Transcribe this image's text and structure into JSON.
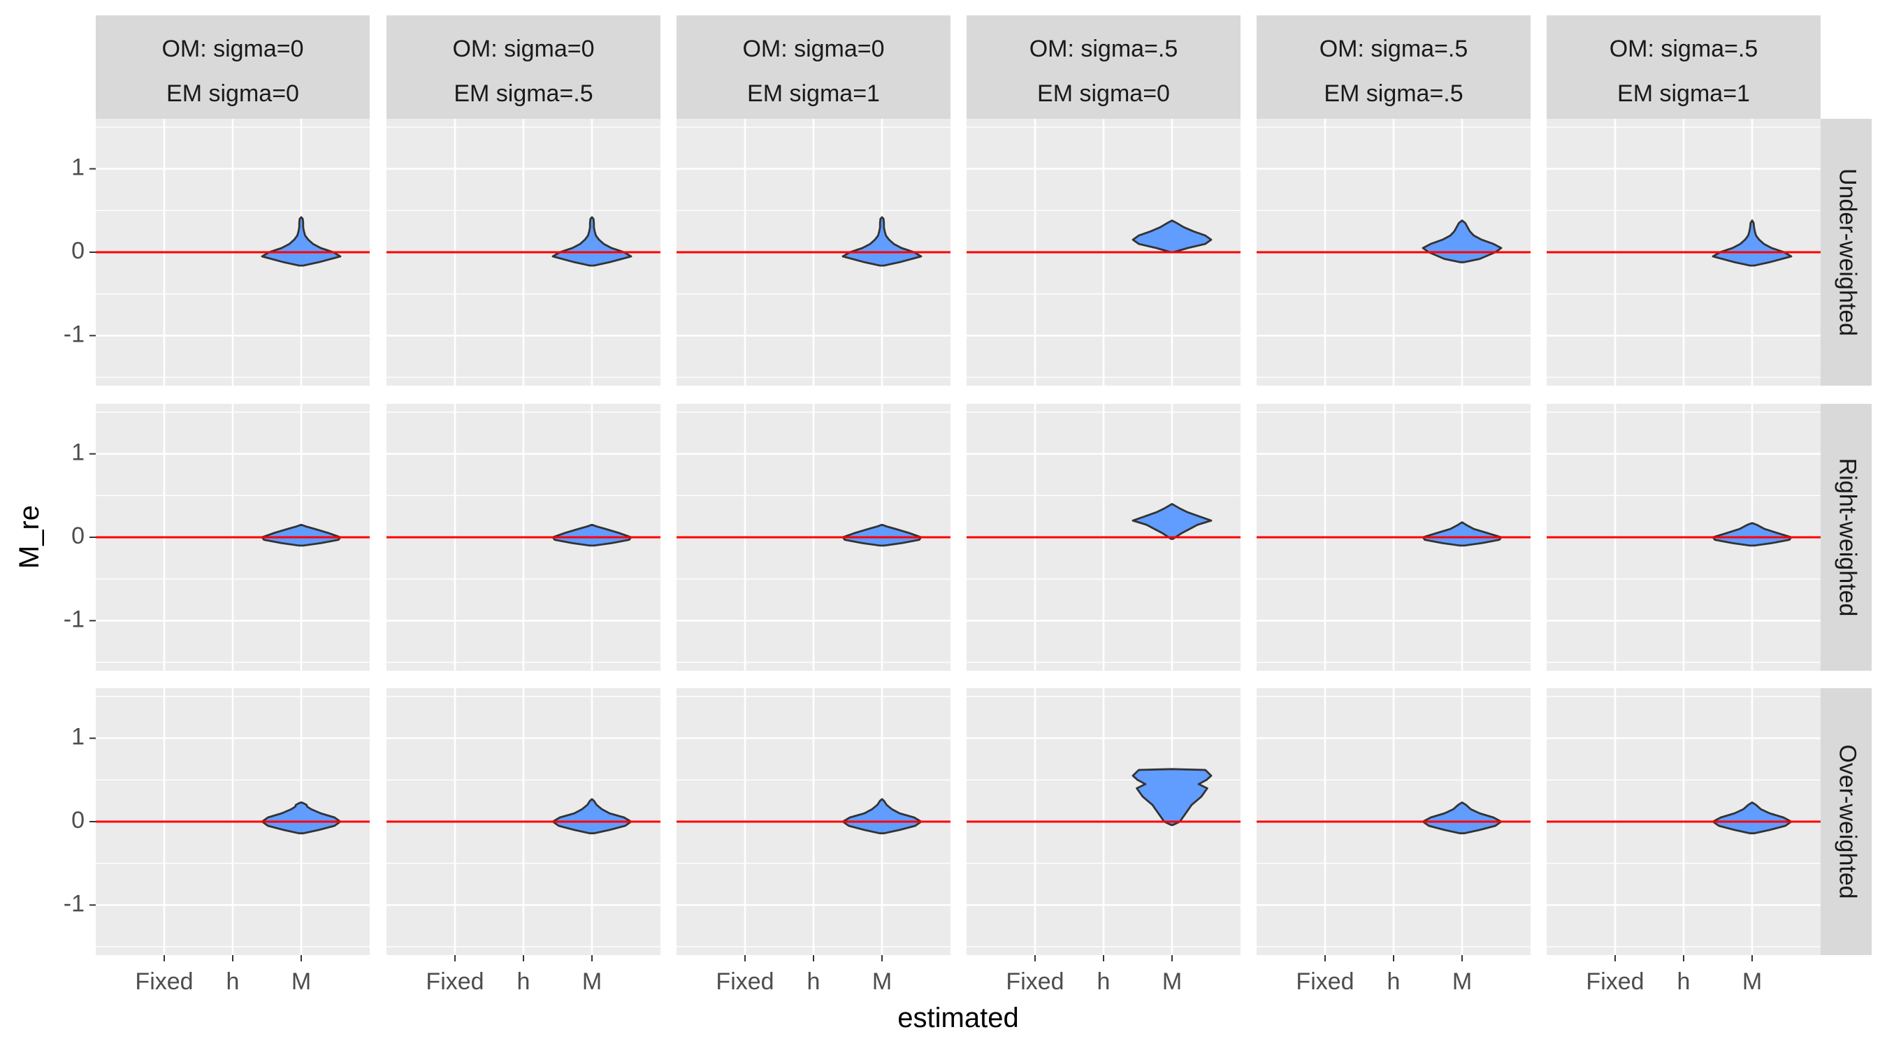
{
  "chart_data": {
    "type": "violin",
    "xlabel": "estimated",
    "ylabel": "M_re",
    "x_categories": [
      "Fixed",
      "h",
      "M"
    ],
    "ylim": [
      -1.6,
      1.6
    ],
    "y_ticks": [
      -1,
      0,
      1
    ],
    "y_tick_labels": [
      "-1",
      "0",
      "1"
    ],
    "reference_line_y": 0,
    "reference_line_color": "#ff0000",
    "violin_fill": "#619cff",
    "panel_background": "#ebebeb",
    "strip_background": "#d9d9d9",
    "columns": [
      {
        "om": "OM: sigma=0",
        "em": "EM sigma=0"
      },
      {
        "om": "OM: sigma=0",
        "em": "EM sigma=.5"
      },
      {
        "om": "OM: sigma=0",
        "em": "EM sigma=1"
      },
      {
        "om": "OM: sigma=.5",
        "em": "EM sigma=0"
      },
      {
        "om": "OM: sigma=.5",
        "em": "EM sigma=.5"
      },
      {
        "om": "OM: sigma=.5",
        "em": "EM sigma=1"
      }
    ],
    "rows": [
      "Under-weighted",
      "Right-weighted",
      "Over-weighted"
    ],
    "violin_shapes": {
      "A": [
        [
          -0.16,
          0.05
        ],
        [
          -0.12,
          0.45
        ],
        [
          -0.05,
          1.0
        ],
        [
          0.0,
          0.82
        ],
        [
          0.05,
          0.5
        ],
        [
          0.1,
          0.3
        ],
        [
          0.15,
          0.18
        ],
        [
          0.2,
          0.1
        ],
        [
          0.25,
          0.07
        ],
        [
          0.3,
          0.05
        ],
        [
          0.35,
          0.05
        ],
        [
          0.4,
          0.04
        ],
        [
          0.42,
          0.0
        ]
      ],
      "B": [
        [
          0.0,
          0.03
        ],
        [
          0.05,
          0.4
        ],
        [
          0.1,
          0.85
        ],
        [
          0.15,
          1.0
        ],
        [
          0.2,
          0.85
        ],
        [
          0.25,
          0.55
        ],
        [
          0.3,
          0.3
        ],
        [
          0.35,
          0.12
        ],
        [
          0.38,
          0.0
        ]
      ],
      "C": [
        [
          -0.12,
          0.05
        ],
        [
          -0.08,
          0.45
        ],
        [
          0.0,
          0.85
        ],
        [
          0.05,
          1.0
        ],
        [
          0.1,
          0.8
        ],
        [
          0.15,
          0.5
        ],
        [
          0.2,
          0.3
        ],
        [
          0.25,
          0.2
        ],
        [
          0.3,
          0.14
        ],
        [
          0.35,
          0.08
        ],
        [
          0.38,
          0.0
        ]
      ],
      "D": [
        [
          -0.16,
          0.05
        ],
        [
          -0.12,
          0.45
        ],
        [
          -0.05,
          1.0
        ],
        [
          0.0,
          0.82
        ],
        [
          0.05,
          0.5
        ],
        [
          0.1,
          0.3
        ],
        [
          0.15,
          0.18
        ],
        [
          0.2,
          0.1
        ],
        [
          0.25,
          0.07
        ],
        [
          0.3,
          0.05
        ],
        [
          0.35,
          0.04
        ],
        [
          0.38,
          0.0
        ]
      ],
      "E": [
        [
          -0.1,
          0.05
        ],
        [
          -0.07,
          0.5
        ],
        [
          -0.03,
          0.95
        ],
        [
          0.0,
          1.0
        ],
        [
          0.05,
          0.7
        ],
        [
          0.1,
          0.35
        ],
        [
          0.13,
          0.12
        ],
        [
          0.15,
          0.0
        ]
      ],
      "F": [
        [
          -0.02,
          0.02
        ],
        [
          0.05,
          0.25
        ],
        [
          0.1,
          0.45
        ],
        [
          0.15,
          0.65
        ],
        [
          0.2,
          1.0
        ],
        [
          0.25,
          0.7
        ],
        [
          0.3,
          0.4
        ],
        [
          0.35,
          0.18
        ],
        [
          0.4,
          0.0
        ]
      ],
      "G": [
        [
          -0.1,
          0.05
        ],
        [
          -0.07,
          0.5
        ],
        [
          -0.03,
          0.95
        ],
        [
          0.0,
          1.0
        ],
        [
          0.05,
          0.65
        ],
        [
          0.1,
          0.3
        ],
        [
          0.15,
          0.1
        ],
        [
          0.18,
          0.0
        ]
      ],
      "H": [
        [
          -0.1,
          0.05
        ],
        [
          -0.07,
          0.5
        ],
        [
          -0.03,
          0.95
        ],
        [
          0.0,
          1.0
        ],
        [
          0.05,
          0.65
        ],
        [
          0.1,
          0.32
        ],
        [
          0.15,
          0.12
        ],
        [
          0.17,
          0.0
        ]
      ],
      "I": [
        [
          -0.14,
          0.05
        ],
        [
          -0.1,
          0.45
        ],
        [
          -0.05,
          0.85
        ],
        [
          0.0,
          1.0
        ],
        [
          0.05,
          0.85
        ],
        [
          0.1,
          0.5
        ],
        [
          0.15,
          0.25
        ],
        [
          0.18,
          0.15
        ],
        [
          0.2,
          0.14
        ],
        [
          0.22,
          0.06
        ],
        [
          0.23,
          0.0
        ]
      ],
      "J": [
        [
          -0.14,
          0.05
        ],
        [
          -0.1,
          0.45
        ],
        [
          -0.05,
          0.85
        ],
        [
          0.0,
          1.0
        ],
        [
          0.05,
          0.82
        ],
        [
          0.1,
          0.45
        ],
        [
          0.15,
          0.25
        ],
        [
          0.2,
          0.12
        ],
        [
          0.25,
          0.05
        ],
        [
          0.27,
          0.0
        ]
      ],
      "K": [
        [
          -0.04,
          0.02
        ],
        [
          0.0,
          0.2
        ],
        [
          0.1,
          0.35
        ],
        [
          0.2,
          0.5
        ],
        [
          0.3,
          0.75
        ],
        [
          0.4,
          0.9
        ],
        [
          0.45,
          0.68
        ],
        [
          0.5,
          0.88
        ],
        [
          0.55,
          1.0
        ],
        [
          0.62,
          0.85
        ],
        [
          0.63,
          0.0
        ]
      ],
      "L": [
        [
          -0.14,
          0.05
        ],
        [
          -0.1,
          0.45
        ],
        [
          -0.05,
          0.85
        ],
        [
          0.0,
          1.0
        ],
        [
          0.05,
          0.8
        ],
        [
          0.1,
          0.45
        ],
        [
          0.15,
          0.22
        ],
        [
          0.2,
          0.1
        ],
        [
          0.23,
          0.0
        ]
      ]
    },
    "violins": [
      {
        "row": 0,
        "col": 0,
        "x": "M",
        "shape": "A"
      },
      {
        "row": 0,
        "col": 1,
        "x": "M",
        "shape": "A"
      },
      {
        "row": 0,
        "col": 2,
        "x": "M",
        "shape": "A"
      },
      {
        "row": 0,
        "col": 3,
        "x": "M",
        "shape": "B"
      },
      {
        "row": 0,
        "col": 4,
        "x": "M",
        "shape": "C"
      },
      {
        "row": 0,
        "col": 5,
        "x": "M",
        "shape": "D"
      },
      {
        "row": 1,
        "col": 0,
        "x": "M",
        "shape": "E"
      },
      {
        "row": 1,
        "col": 1,
        "x": "M",
        "shape": "E"
      },
      {
        "row": 1,
        "col": 2,
        "x": "M",
        "shape": "E"
      },
      {
        "row": 1,
        "col": 3,
        "x": "M",
        "shape": "F"
      },
      {
        "row": 1,
        "col": 4,
        "x": "M",
        "shape": "G"
      },
      {
        "row": 1,
        "col": 5,
        "x": "M",
        "shape": "H"
      },
      {
        "row": 2,
        "col": 0,
        "x": "M",
        "shape": "I"
      },
      {
        "row": 2,
        "col": 1,
        "x": "M",
        "shape": "J"
      },
      {
        "row": 2,
        "col": 2,
        "x": "M",
        "shape": "J"
      },
      {
        "row": 2,
        "col": 3,
        "x": "M",
        "shape": "K"
      },
      {
        "row": 2,
        "col": 4,
        "x": "M",
        "shape": "L"
      },
      {
        "row": 2,
        "col": 5,
        "x": "M",
        "shape": "L"
      }
    ]
  }
}
